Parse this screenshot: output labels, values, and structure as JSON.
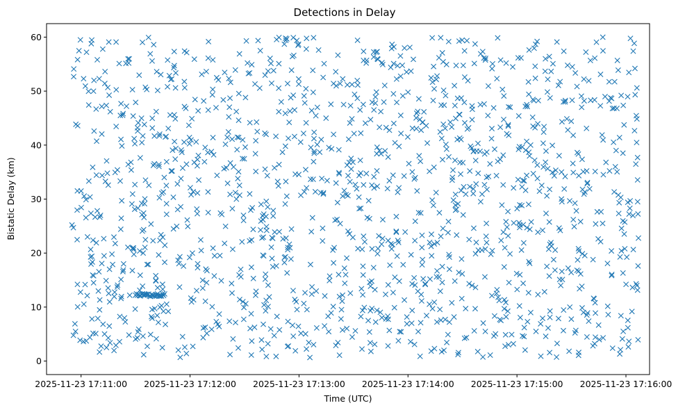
{
  "chart_data": {
    "type": "scatter",
    "title": "Detections in Delay",
    "xlabel": "Time (UTC)",
    "ylabel": "Bistatic Delay (km)",
    "x_range_seconds": [
      -19,
      313
    ],
    "x_start_label": "2025-11-23 17:11:00",
    "xticks": [
      {
        "t": 0,
        "label": "2025-11-23 17:11:00"
      },
      {
        "t": 60,
        "label": "2025-11-23 17:12:00"
      },
      {
        "t": 120,
        "label": "2025-11-23 17:13:00"
      },
      {
        "t": 180,
        "label": "2025-11-23 17:14:00"
      },
      {
        "t": 240,
        "label": "2025-11-23 17:15:00"
      },
      {
        "t": 300,
        "label": "2025-11-23 17:16:00"
      }
    ],
    "ylim": [
      -2.5,
      62.5
    ],
    "yticks": [
      0,
      10,
      20,
      30,
      40,
      50,
      60
    ],
    "marker": "x",
    "color": "#1f77b4",
    "grid": false,
    "point_count": 1500,
    "time_span_seconds": [
      -5,
      307
    ],
    "delay_span_km": [
      0.5,
      60
    ],
    "cluster": {
      "t_start": 30,
      "t_end": 46,
      "delay_km": 12.2,
      "count": 30
    },
    "series": [
      {
        "name": "detections",
        "x": [
          -5,
          -4,
          -2,
          0,
          3,
          6,
          10,
          14,
          17,
          20,
          22,
          25,
          28,
          31,
          34,
          37,
          40,
          44,
          48,
          52,
          55,
          58,
          61,
          64,
          67,
          70,
          73,
          76,
          79,
          82,
          85,
          88,
          91,
          94,
          97,
          100,
          103,
          106,
          109,
          112,
          115,
          118,
          121,
          124,
          127,
          130,
          133,
          136,
          139,
          142,
          145,
          148,
          151,
          154,
          157,
          160,
          163,
          166,
          169,
          172,
          175,
          178,
          181,
          184,
          187,
          190,
          193,
          196,
          199,
          202,
          205,
          208,
          211,
          214,
          217,
          220,
          223,
          226,
          229,
          232,
          235,
          238,
          241,
          244,
          247,
          250,
          253,
          256,
          259,
          262,
          265,
          268,
          271,
          274,
          277,
          280,
          283,
          286,
          289,
          292,
          295,
          298,
          301,
          304,
          306
        ],
        "y": [
          25.2,
          54.1,
          14.2,
          31.5,
          57.2,
          7.8,
          52.3,
          2.5,
          19.8,
          35.4,
          11.6,
          47.2,
          29.1,
          4.3,
          41.7,
          17.9,
          58.6,
          23.4,
          9.2,
          50.6,
          33.8,
          1.4,
          44.9,
          27.3,
          13.5,
          56.1,
          38.2,
          6.4,
          21.8,
          48.7,
          31.2,
          15.6,
          59.3,
          3.7,
          42.5,
          26.9,
          10.1,
          53.8,
          36.4,
          19.2,
          46.3,
          1.9,
          30.7,
          57.8,
          12.4,
          40.1,
          24.6,
          8.3,
          51.4,
          34.9,
          17.2,
          44.1,
          5.6,
          28.3,
          55.2,
          14.8,
          39.6,
          22.7,
          2.8,
          49.5,
          32.1,
          11.3,
          58.1,
          25.9,
          7.1,
          43.6,
          19.5,
          52.8,
          37.3,
          4.9,
          29.8,
          16.4,
          47.9,
          35.2,
          9.7,
          56.9,
          23.1,
          41.2,
          13.2,
          50.3,
          27.7,
          3.2,
          45.4,
          33.4,
          18.1,
          54.6,
          6.9,
          38.9,
          21.3,
          59.1,
          15.1,
          42.8,
          26.2,
          1.6,
          48.2,
          31.9,
          10.8,
          53.1,
          36.8,
          20.4,
          46.8,
          4.1,
          29.4,
          57.4,
          14.0
        ]
      }
    ]
  }
}
